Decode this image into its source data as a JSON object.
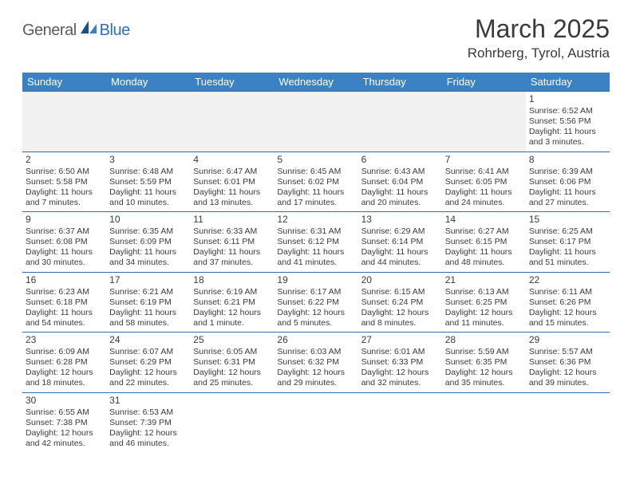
{
  "logo": {
    "word1": "General",
    "word2": "Blue"
  },
  "title": "March 2025",
  "location": "Rohrberg, Tyrol, Austria",
  "weekday_headers": [
    "Sunday",
    "Monday",
    "Tuesday",
    "Wednesday",
    "Thursday",
    "Friday",
    "Saturday"
  ],
  "colors": {
    "header_bg": "#3b82c4",
    "header_text": "#ffffff",
    "border": "#2f6fb0",
    "logo_gray": "#5a5a5a",
    "logo_blue": "#2f6fb0",
    "empty_bg": "#f1f1f1"
  },
  "weeks": [
    [
      {
        "empty": true
      },
      {
        "empty": true
      },
      {
        "empty": true
      },
      {
        "empty": true
      },
      {
        "empty": true
      },
      {
        "empty": true
      },
      {
        "day": "1",
        "sunrise": "Sunrise: 6:52 AM",
        "sunset": "Sunset: 5:56 PM",
        "daylight1": "Daylight: 11 hours",
        "daylight2": "and 3 minutes."
      }
    ],
    [
      {
        "day": "2",
        "sunrise": "Sunrise: 6:50 AM",
        "sunset": "Sunset: 5:58 PM",
        "daylight1": "Daylight: 11 hours",
        "daylight2": "and 7 minutes."
      },
      {
        "day": "3",
        "sunrise": "Sunrise: 6:48 AM",
        "sunset": "Sunset: 5:59 PM",
        "daylight1": "Daylight: 11 hours",
        "daylight2": "and 10 minutes."
      },
      {
        "day": "4",
        "sunrise": "Sunrise: 6:47 AM",
        "sunset": "Sunset: 6:01 PM",
        "daylight1": "Daylight: 11 hours",
        "daylight2": "and 13 minutes."
      },
      {
        "day": "5",
        "sunrise": "Sunrise: 6:45 AM",
        "sunset": "Sunset: 6:02 PM",
        "daylight1": "Daylight: 11 hours",
        "daylight2": "and 17 minutes."
      },
      {
        "day": "6",
        "sunrise": "Sunrise: 6:43 AM",
        "sunset": "Sunset: 6:04 PM",
        "daylight1": "Daylight: 11 hours",
        "daylight2": "and 20 minutes."
      },
      {
        "day": "7",
        "sunrise": "Sunrise: 6:41 AM",
        "sunset": "Sunset: 6:05 PM",
        "daylight1": "Daylight: 11 hours",
        "daylight2": "and 24 minutes."
      },
      {
        "day": "8",
        "sunrise": "Sunrise: 6:39 AM",
        "sunset": "Sunset: 6:06 PM",
        "daylight1": "Daylight: 11 hours",
        "daylight2": "and 27 minutes."
      }
    ],
    [
      {
        "day": "9",
        "sunrise": "Sunrise: 6:37 AM",
        "sunset": "Sunset: 6:08 PM",
        "daylight1": "Daylight: 11 hours",
        "daylight2": "and 30 minutes."
      },
      {
        "day": "10",
        "sunrise": "Sunrise: 6:35 AM",
        "sunset": "Sunset: 6:09 PM",
        "daylight1": "Daylight: 11 hours",
        "daylight2": "and 34 minutes."
      },
      {
        "day": "11",
        "sunrise": "Sunrise: 6:33 AM",
        "sunset": "Sunset: 6:11 PM",
        "daylight1": "Daylight: 11 hours",
        "daylight2": "and 37 minutes."
      },
      {
        "day": "12",
        "sunrise": "Sunrise: 6:31 AM",
        "sunset": "Sunset: 6:12 PM",
        "daylight1": "Daylight: 11 hours",
        "daylight2": "and 41 minutes."
      },
      {
        "day": "13",
        "sunrise": "Sunrise: 6:29 AM",
        "sunset": "Sunset: 6:14 PM",
        "daylight1": "Daylight: 11 hours",
        "daylight2": "and 44 minutes."
      },
      {
        "day": "14",
        "sunrise": "Sunrise: 6:27 AM",
        "sunset": "Sunset: 6:15 PM",
        "daylight1": "Daylight: 11 hours",
        "daylight2": "and 48 minutes."
      },
      {
        "day": "15",
        "sunrise": "Sunrise: 6:25 AM",
        "sunset": "Sunset: 6:17 PM",
        "daylight1": "Daylight: 11 hours",
        "daylight2": "and 51 minutes."
      }
    ],
    [
      {
        "day": "16",
        "sunrise": "Sunrise: 6:23 AM",
        "sunset": "Sunset: 6:18 PM",
        "daylight1": "Daylight: 11 hours",
        "daylight2": "and 54 minutes."
      },
      {
        "day": "17",
        "sunrise": "Sunrise: 6:21 AM",
        "sunset": "Sunset: 6:19 PM",
        "daylight1": "Daylight: 11 hours",
        "daylight2": "and 58 minutes."
      },
      {
        "day": "18",
        "sunrise": "Sunrise: 6:19 AM",
        "sunset": "Sunset: 6:21 PM",
        "daylight1": "Daylight: 12 hours",
        "daylight2": "and 1 minute."
      },
      {
        "day": "19",
        "sunrise": "Sunrise: 6:17 AM",
        "sunset": "Sunset: 6:22 PM",
        "daylight1": "Daylight: 12 hours",
        "daylight2": "and 5 minutes."
      },
      {
        "day": "20",
        "sunrise": "Sunrise: 6:15 AM",
        "sunset": "Sunset: 6:24 PM",
        "daylight1": "Daylight: 12 hours",
        "daylight2": "and 8 minutes."
      },
      {
        "day": "21",
        "sunrise": "Sunrise: 6:13 AM",
        "sunset": "Sunset: 6:25 PM",
        "daylight1": "Daylight: 12 hours",
        "daylight2": "and 11 minutes."
      },
      {
        "day": "22",
        "sunrise": "Sunrise: 6:11 AM",
        "sunset": "Sunset: 6:26 PM",
        "daylight1": "Daylight: 12 hours",
        "daylight2": "and 15 minutes."
      }
    ],
    [
      {
        "day": "23",
        "sunrise": "Sunrise: 6:09 AM",
        "sunset": "Sunset: 6:28 PM",
        "daylight1": "Daylight: 12 hours",
        "daylight2": "and 18 minutes."
      },
      {
        "day": "24",
        "sunrise": "Sunrise: 6:07 AM",
        "sunset": "Sunset: 6:29 PM",
        "daylight1": "Daylight: 12 hours",
        "daylight2": "and 22 minutes."
      },
      {
        "day": "25",
        "sunrise": "Sunrise: 6:05 AM",
        "sunset": "Sunset: 6:31 PM",
        "daylight1": "Daylight: 12 hours",
        "daylight2": "and 25 minutes."
      },
      {
        "day": "26",
        "sunrise": "Sunrise: 6:03 AM",
        "sunset": "Sunset: 6:32 PM",
        "daylight1": "Daylight: 12 hours",
        "daylight2": "and 29 minutes."
      },
      {
        "day": "27",
        "sunrise": "Sunrise: 6:01 AM",
        "sunset": "Sunset: 6:33 PM",
        "daylight1": "Daylight: 12 hours",
        "daylight2": "and 32 minutes."
      },
      {
        "day": "28",
        "sunrise": "Sunrise: 5:59 AM",
        "sunset": "Sunset: 6:35 PM",
        "daylight1": "Daylight: 12 hours",
        "daylight2": "and 35 minutes."
      },
      {
        "day": "29",
        "sunrise": "Sunrise: 5:57 AM",
        "sunset": "Sunset: 6:36 PM",
        "daylight1": "Daylight: 12 hours",
        "daylight2": "and 39 minutes."
      }
    ],
    [
      {
        "day": "30",
        "sunrise": "Sunrise: 6:55 AM",
        "sunset": "Sunset: 7:38 PM",
        "daylight1": "Daylight: 12 hours",
        "daylight2": "and 42 minutes."
      },
      {
        "day": "31",
        "sunrise": "Sunrise: 6:53 AM",
        "sunset": "Sunset: 7:39 PM",
        "daylight1": "Daylight: 12 hours",
        "daylight2": "and 46 minutes."
      },
      {
        "blank": true
      },
      {
        "blank": true
      },
      {
        "blank": true
      },
      {
        "blank": true
      },
      {
        "blank": true
      }
    ]
  ]
}
